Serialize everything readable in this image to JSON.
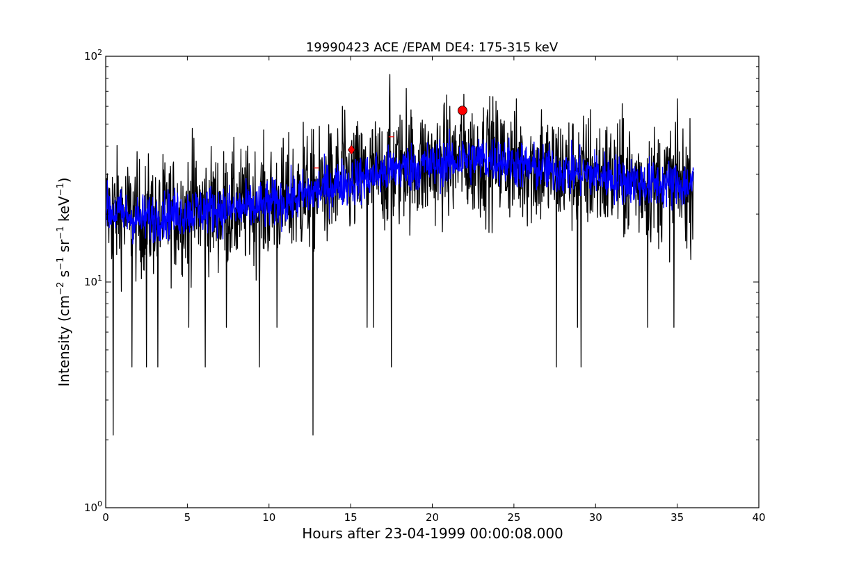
{
  "chart_data": {
    "type": "line",
    "title": "19990423 ACE /EPAM DE4: 175-315 keV",
    "xlabel": "Hours after 23-04-1999 00:00:08.000",
    "ylabel_parts": [
      "Intensity (cm",
      "−2",
      " s",
      "−1",
      " sr",
      "−1",
      " keV",
      "−1",
      ")"
    ],
    "xlim": [
      0,
      40
    ],
    "ylim": [
      1,
      100
    ],
    "yscale": "log",
    "xticks": [
      0,
      5,
      10,
      15,
      20,
      25,
      30,
      35,
      40
    ],
    "xtick_labels": [
      "0",
      "5",
      "10",
      "15",
      "20",
      "25",
      "30",
      "35",
      "40"
    ],
    "yticks_major": [
      {
        "value": 1,
        "base": "10",
        "exp": "0"
      },
      {
        "value": 10,
        "base": "10",
        "exp": "1"
      },
      {
        "value": 100,
        "base": "10",
        "exp": "2"
      }
    ],
    "grid": false,
    "series": [
      {
        "color": "#000000",
        "style": "raw",
        "trend": [
          [
            0,
            21
          ],
          [
            2,
            19
          ],
          [
            4,
            20
          ],
          [
            6,
            21
          ],
          [
            8,
            21
          ],
          [
            10,
            22
          ],
          [
            12,
            24
          ],
          [
            14,
            27
          ],
          [
            16,
            29
          ],
          [
            18,
            32
          ],
          [
            20,
            33
          ],
          [
            22,
            35
          ],
          [
            24,
            35
          ],
          [
            26,
            32
          ],
          [
            28,
            31
          ],
          [
            30,
            30
          ],
          [
            32,
            28
          ],
          [
            34,
            27
          ],
          [
            36,
            27
          ]
        ],
        "spread_log10": 0.17,
        "spikes": [
          [
            0.45,
            2.1
          ],
          [
            1.6,
            4.2
          ],
          [
            2.5,
            4.2
          ],
          [
            3.2,
            4.2
          ],
          [
            6.1,
            4.2
          ],
          [
            9.4,
            4.2
          ],
          [
            12.7,
            2.1
          ],
          [
            17.5,
            4.2
          ],
          [
            27.6,
            4.2
          ],
          [
            29.1,
            4.2
          ],
          [
            28.9,
            6.3
          ],
          [
            33.2,
            6.3
          ],
          [
            34.8,
            6.3
          ],
          [
            5.1,
            6.3
          ],
          [
            7.4,
            6.3
          ],
          [
            10.5,
            6.3
          ],
          [
            16.0,
            6.3
          ],
          [
            16.4,
            6.3
          ],
          [
            17.4,
            83
          ],
          [
            18.4,
            72
          ],
          [
            14.5,
            60
          ],
          [
            5.3,
            48
          ],
          [
            12.1,
            51
          ],
          [
            21.8,
            60
          ],
          [
            23.4,
            58
          ],
          [
            26.7,
            58
          ],
          [
            29.7,
            58
          ],
          [
            31.7,
            53
          ],
          [
            34.9,
            51
          ]
        ]
      },
      {
        "color": "#0000ff",
        "style": "smoothed",
        "trend": [
          [
            0,
            21
          ],
          [
            2,
            19
          ],
          [
            4,
            20
          ],
          [
            6,
            21
          ],
          [
            8,
            21
          ],
          [
            10,
            22
          ],
          [
            12,
            24
          ],
          [
            14,
            27
          ],
          [
            16,
            29
          ],
          [
            18,
            32
          ],
          [
            20,
            33
          ],
          [
            22,
            35
          ],
          [
            24,
            35
          ],
          [
            26,
            32
          ],
          [
            28,
            31
          ],
          [
            30,
            30
          ],
          [
            32,
            28
          ],
          [
            34,
            27
          ],
          [
            36,
            27
          ]
        ],
        "spread_log10": 0.09
      }
    ],
    "markers": [
      {
        "x": 15.05,
        "y": 38.5,
        "shape": "diamond",
        "color": "#ff0000"
      },
      {
        "x": 21.85,
        "y": 57.5,
        "shape": "circle",
        "color": "#ff0000"
      },
      {
        "x": 12.9,
        "y": 32,
        "shape": "tick",
        "color": "#ff0000"
      },
      {
        "x": 17.5,
        "y": 44,
        "shape": "tick",
        "color": "#ff0000"
      }
    ]
  }
}
